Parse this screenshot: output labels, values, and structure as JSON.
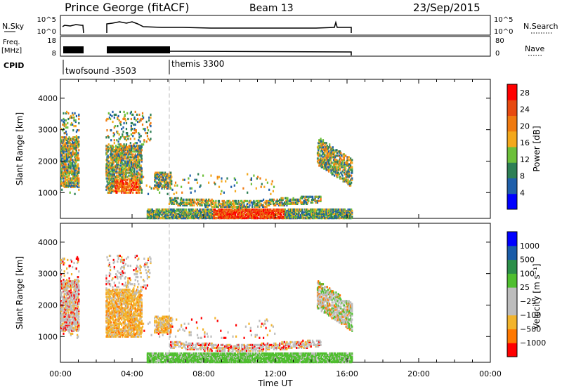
{
  "header": {
    "station": "Prince George (fitACF)",
    "beam": "Beam 13",
    "date": "23/Sep/2015"
  },
  "strip_labels": {
    "nsky": "N.Sky",
    "nsearch": "N.Search",
    "freq": "Freq.",
    "freq_unit": "[MHz]",
    "nave": "Nave",
    "cpid": "CPID",
    "nsky_ticks": [
      "10^5",
      "10^0"
    ],
    "nsearch_ticks": [
      "10^5",
      "10^0"
    ],
    "freq_ticks": [
      "18",
      "8"
    ],
    "nave_ticks": [
      "80",
      "0"
    ]
  },
  "cpid_segments": [
    {
      "label": "twofsound  -3503",
      "start": "00:00",
      "end": "06:00"
    },
    {
      "label": "themis  3300",
      "start": "06:00",
      "end": "24:00"
    }
  ],
  "colors": {
    "power": [
      "#0000ff",
      "#1f5faa",
      "#2d7f55",
      "#6cbf3a",
      "#f3a81c",
      "#f07a10",
      "#e84a10",
      "#ff0000"
    ],
    "velocity": [
      "#ff0000",
      "#ff7800",
      "#f2b42c",
      "#bdbdbd",
      "#bdbdbd",
      "#4fbf2f",
      "#2c8f4a",
      "#1a5ca8",
      "#0000ff"
    ]
  },
  "chart_data": [
    {
      "type": "heatmap",
      "title": "",
      "quantity": "Power",
      "xlabel": "",
      "ylabel": "Slant Range [km]",
      "xlim": [
        "00:00",
        "24:00"
      ],
      "ylim": [
        180,
        4600
      ],
      "x_ticks": [
        "00:00",
        "04:00",
        "08:00",
        "12:00",
        "16:00",
        "20:00",
        "00:00"
      ],
      "y_ticks": [
        1000,
        2000,
        3000,
        4000
      ],
      "colorbar_label": "Power [dB]",
      "colorbar_ticks": [
        4,
        8,
        12,
        16,
        20,
        24,
        28
      ],
      "colorbar_range": [
        0,
        30
      ],
      "data_extent_ut": [
        "00:00",
        "16:15"
      ],
      "data_gaps_ut": [
        [
          "01:00",
          "02:30"
        ]
      ],
      "echo_regions": [
        {
          "t_start": "00:00",
          "t_end": "01:00",
          "range_km": [
            1200,
            2700
          ],
          "level": "12-16"
        },
        {
          "t_start": "02:30",
          "t_end": "04:30",
          "range_km": [
            1000,
            2500
          ],
          "level": "12-20"
        },
        {
          "t_start": "03:00",
          "t_end": "04:20",
          "range_km": [
            1000,
            1400
          ],
          "level": "24-28"
        },
        {
          "t_start": "05:20",
          "t_end": "06:00",
          "range_km": [
            1200,
            1600
          ],
          "level": "16-24"
        },
        {
          "t_start": "05:00",
          "t_end": "16:15",
          "range_km": [
            180,
            500
          ],
          "level": "8-16"
        },
        {
          "t_start": "08:30",
          "t_end": "12:30",
          "range_km": [
            180,
            450
          ],
          "level": "24-28"
        },
        {
          "t_start": "14:30",
          "t_end": "16:15",
          "range_km": [
            1400,
            2700
          ],
          "level": "12-20"
        }
      ]
    },
    {
      "type": "heatmap",
      "title": "",
      "quantity": "Velocity",
      "xlabel": "Time UT",
      "ylabel": "Slant Range [km]",
      "xlim": [
        "00:00",
        "24:00"
      ],
      "ylim": [
        180,
        4600
      ],
      "x_ticks": [
        "00:00",
        "04:00",
        "08:00",
        "12:00",
        "16:00",
        "20:00",
        "00:00"
      ],
      "y_ticks": [
        1000,
        2000,
        3000,
        4000
      ],
      "colorbar_label": "Velocity [m s⁻¹]",
      "colorbar_ticks": [
        "1000",
        "500",
        "100",
        "25",
        "−25",
        "−100",
        "−500",
        "−1000"
      ],
      "data_extent_ut": [
        "00:00",
        "16:15"
      ],
      "data_gaps_ut": [
        [
          "01:00",
          "02:30"
        ]
      ],
      "echo_regions": [
        {
          "t_start": "00:00",
          "t_end": "01:00",
          "range_km": [
            1200,
            2700
          ],
          "level": "-25..25"
        },
        {
          "t_start": "02:30",
          "t_end": "04:30",
          "range_km": [
            1000,
            2500
          ],
          "level": "-100..-25"
        },
        {
          "t_start": "05:00",
          "t_end": "16:15",
          "range_km": [
            180,
            450
          ],
          "level": "25..100"
        },
        {
          "t_start": "14:30",
          "t_end": "16:15",
          "range_km": [
            1400,
            2700
          ],
          "level": "-25..25"
        }
      ]
    }
  ]
}
